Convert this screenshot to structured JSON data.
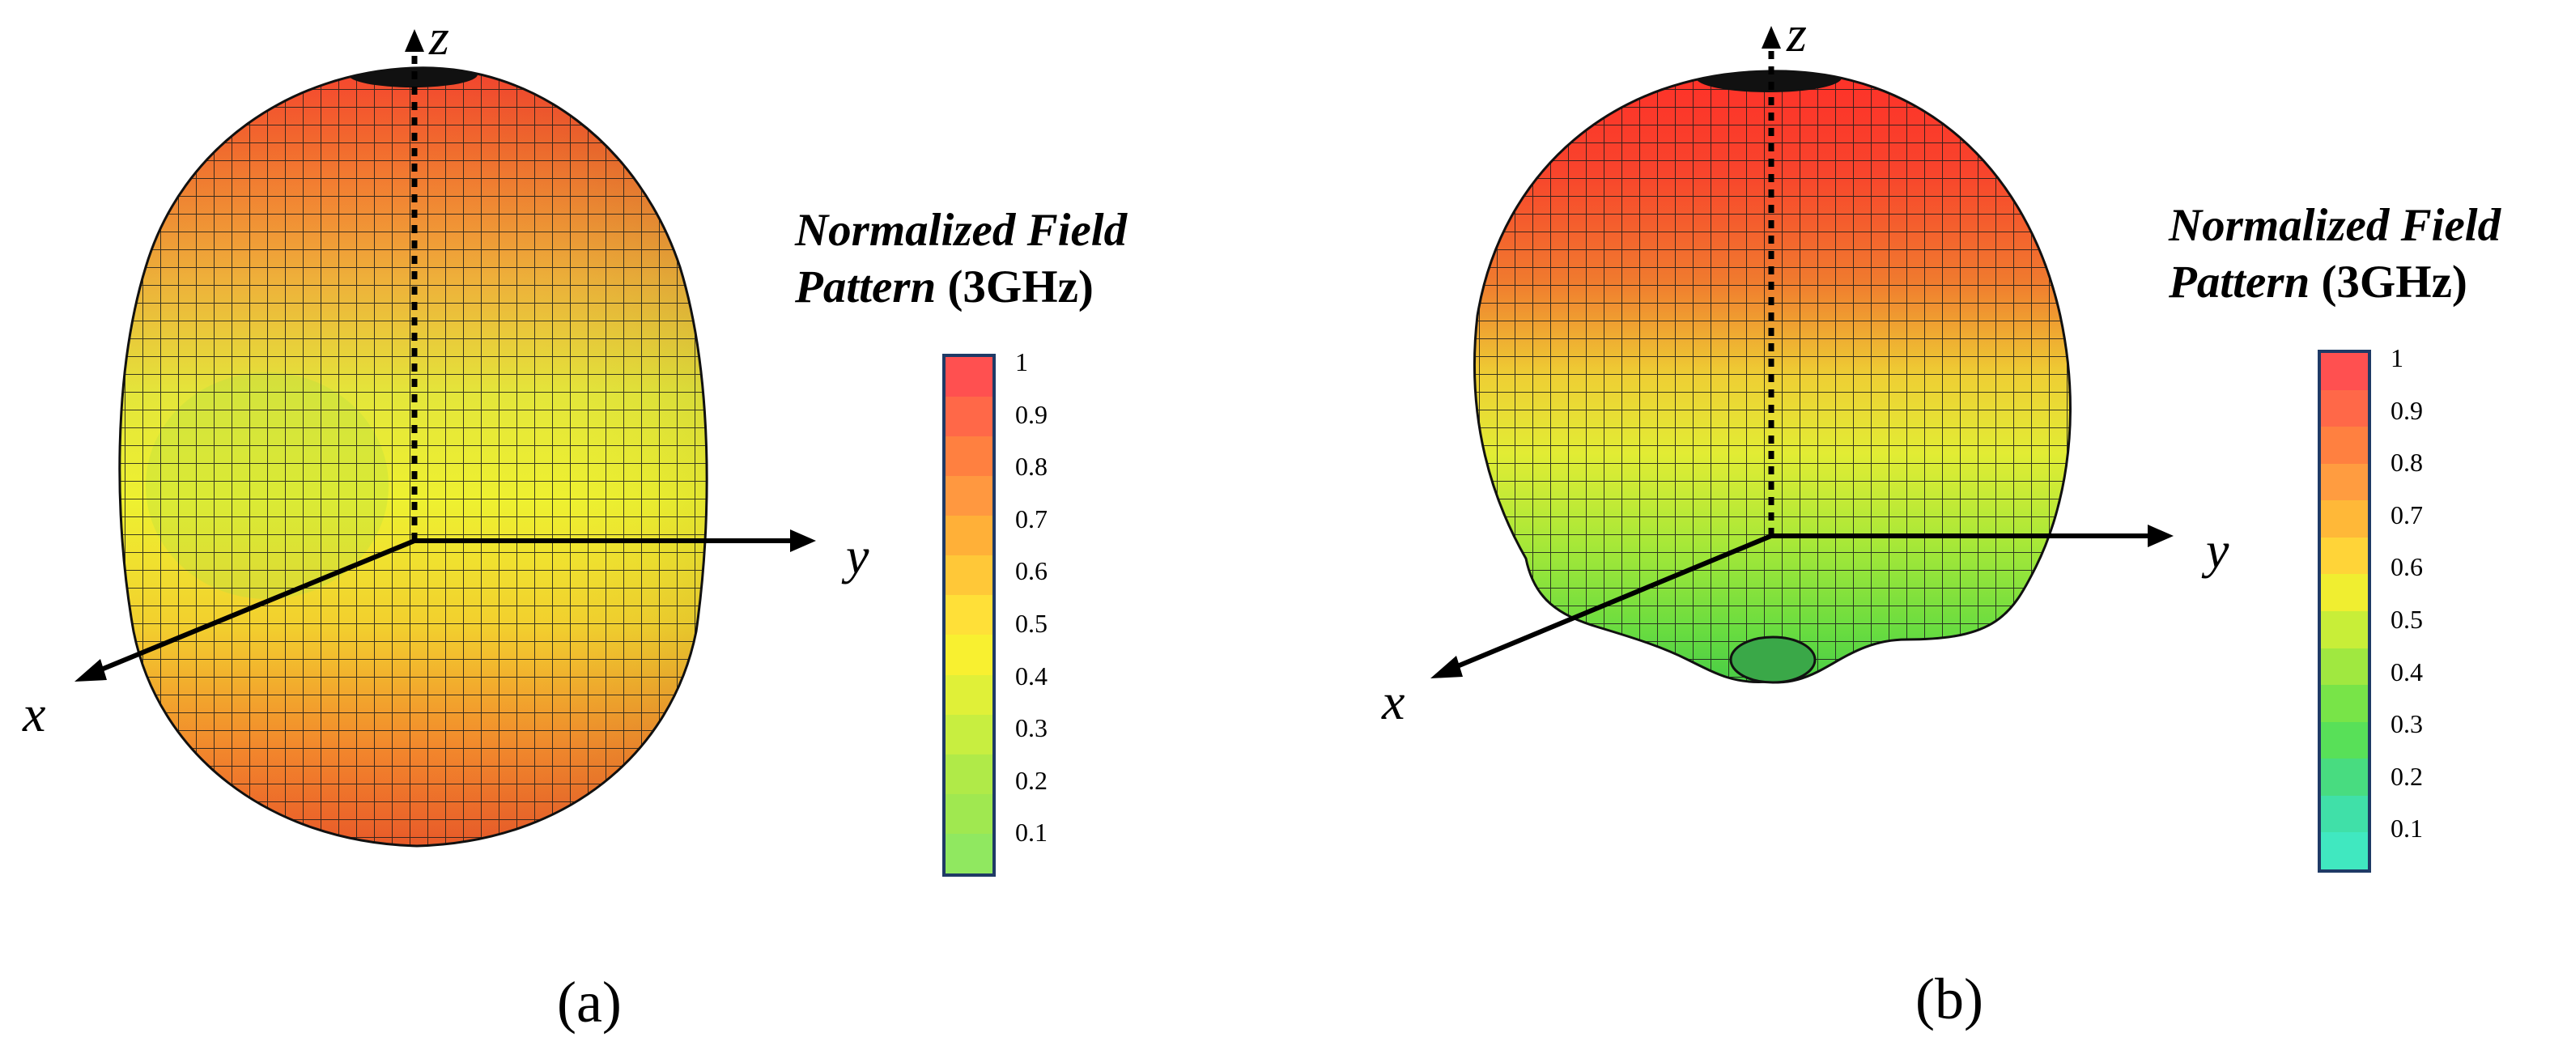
{
  "panels": [
    {
      "id": "a",
      "caption": "(a)",
      "axes": {
        "x": "x",
        "y": "y",
        "z": "z"
      },
      "colorbar": {
        "title_italic_line1": "Normalized Field",
        "title_italic_line2": "Pattern",
        "title_freq": "(3GHz)",
        "ticks": [
          "1",
          "0.9",
          "0.8",
          "0.7",
          "0.6",
          "0.5",
          "0.4",
          "0.3",
          "0.2",
          "0.1"
        ],
        "min_color": "#90e860",
        "max_color": "#ff5050"
      },
      "pattern": "elongated-ellipsoid"
    },
    {
      "id": "b",
      "caption": "(b)",
      "axes": {
        "x": "x",
        "y": "y",
        "z": "z"
      },
      "colorbar": {
        "title_italic_line1": "Normalized Field",
        "title_italic_line2": "Pattern",
        "title_freq": "(3GHz)",
        "ticks": [
          "1",
          "0.9",
          "0.8",
          "0.7",
          "0.6",
          "0.5",
          "0.4",
          "0.3",
          "0.2",
          "0.1"
        ],
        "min_color": "#40e8c0",
        "max_color": "#ff5050"
      },
      "pattern": "forward-lobe"
    }
  ]
}
